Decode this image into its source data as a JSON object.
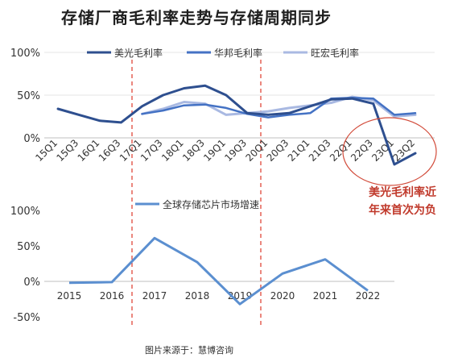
{
  "title": "存储厂商毛利率走势与存储周期同步",
  "source": "图片来源于：慧博咨询",
  "colors": {
    "micron": "#2e4f8f",
    "huabang": "#4472c4",
    "wanghong": "#a9b9e2",
    "global": "#5b8fd0",
    "divider": "#e0473a",
    "annotation": "#c0392b"
  },
  "chart_data": [
    {
      "type": "line",
      "x": [
        "15Q1",
        "15Q3",
        "16Q1",
        "16Q3",
        "17Q1",
        "17Q3",
        "18Q1",
        "18Q3",
        "19Q1",
        "19Q3",
        "20Q1",
        "20Q3",
        "21Q1",
        "21Q3",
        "22Q1",
        "22Q3",
        "23Q1",
        "23Q2"
      ],
      "y_ticks": [
        "100%",
        "50%",
        "0%"
      ],
      "ylim": [
        -1.0,
        1.0
      ],
      "series": [
        {
          "name": "美光毛利率",
          "values": [
            0.34,
            0.27,
            0.2,
            0.18,
            0.37,
            0.5,
            0.58,
            0.61,
            0.5,
            0.29,
            0.27,
            0.29,
            0.37,
            0.45,
            0.46,
            0.4,
            -0.31,
            -0.18
          ]
        },
        {
          "name": "华邦毛利率",
          "values": [
            null,
            null,
            null,
            null,
            0.28,
            0.32,
            0.38,
            0.39,
            0.35,
            0.28,
            0.24,
            0.27,
            0.29,
            0.46,
            0.47,
            0.46,
            0.27,
            0.29
          ]
        },
        {
          "name": "旺宏毛利率",
          "values": [
            null,
            null,
            null,
            null,
            0.28,
            0.34,
            0.42,
            0.4,
            0.27,
            0.29,
            0.31,
            0.35,
            0.38,
            0.41,
            0.48,
            0.44,
            0.25,
            0.27
          ]
        }
      ]
    },
    {
      "type": "line",
      "x": [
        "2015",
        "2016",
        "2017",
        "2018",
        "2019",
        "2020",
        "2021",
        "2022"
      ],
      "y_ticks": [
        "100%",
        "50%",
        "0%",
        "-50%"
      ],
      "ylim": [
        -0.5,
        1.0
      ],
      "series": [
        {
          "name": "全球存储芯片市场增速",
          "values": [
            -0.02,
            -0.01,
            0.61,
            0.27,
            -0.32,
            0.11,
            0.31,
            -0.13
          ]
        }
      ]
    }
  ],
  "annotation": [
    "美光毛利率近",
    "年来首次为负"
  ]
}
